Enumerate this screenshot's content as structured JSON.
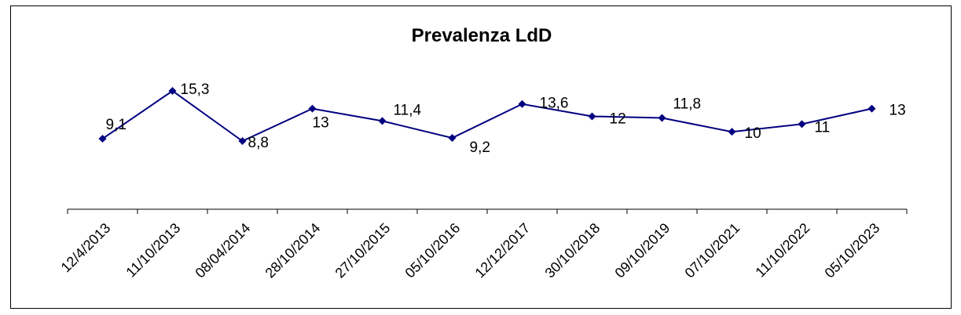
{
  "chart_data": {
    "type": "line",
    "title": "Prevalenza LdD",
    "xlabel": "",
    "ylabel": "",
    "categories": [
      "12/4/2013",
      "11/10/2013",
      "08/04/2014",
      "28/10/2014",
      "27/10/2015",
      "05/10/2016",
      "12/12/2017",
      "30/10/2018",
      "09/10/2019",
      "07/10/2021",
      "11/10/2022",
      "05/10/2023"
    ],
    "series": [
      {
        "values": [
          9.1,
          15.3,
          8.8,
          13,
          11.4,
          9.2,
          13.6,
          12,
          11.8,
          10,
          11,
          13
        ],
        "labels": [
          "9,1",
          "15,3",
          "8,8",
          "13",
          "11,4",
          "9,2",
          "13,6",
          "12",
          "11,8",
          "10",
          "11",
          "13"
        ],
        "color": "#000080",
        "marker": "diamond"
      }
    ],
    "grid": false,
    "legend": "none"
  }
}
